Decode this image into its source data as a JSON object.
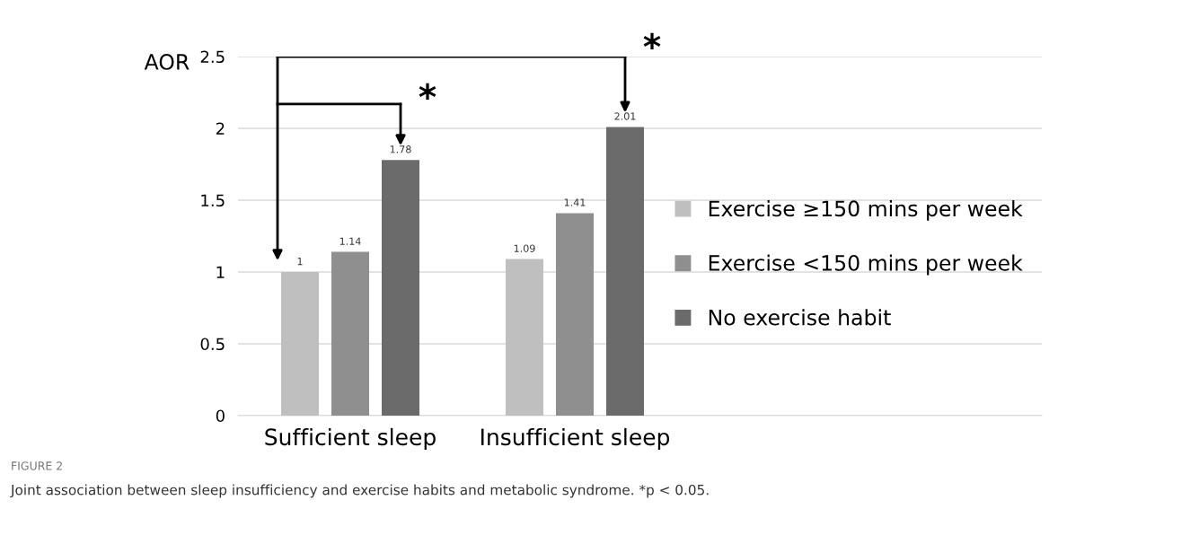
{
  "chart_data": {
    "type": "bar",
    "ylabel": "AOR",
    "categories": [
      "Sufficient sleep",
      "Insufficient sleep"
    ],
    "series": [
      {
        "name": "Exercise ≥150 mins per week",
        "color": "#bfbfbf",
        "values": [
          1,
          1.09
        ]
      },
      {
        "name": "Exercise <150 mins per week",
        "color": "#8f8f8f",
        "values": [
          1.14,
          1.41
        ]
      },
      {
        "name": "No exercise habit",
        "color": "#6b6b6b",
        "values": [
          1.78,
          2.01
        ]
      }
    ],
    "ylim": [
      0,
      2.5
    ],
    "yticks": [
      0,
      0.5,
      1,
      1.5,
      2,
      2.5
    ],
    "grid": "y",
    "legend": "right",
    "data_labels": true,
    "annotations": [
      "*",
      "*",
      "FIGURE 2",
      "Joint association between sleep insufficiency and exercise habits and metabolic syndrome. *p < 0.05."
    ]
  }
}
